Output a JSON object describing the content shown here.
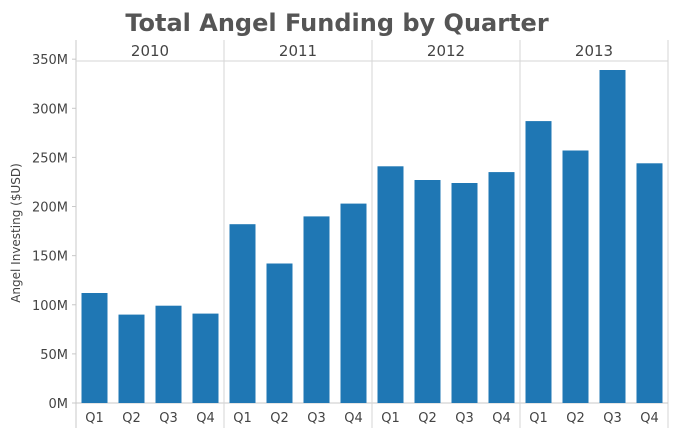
{
  "chart_data": {
    "type": "bar",
    "title": "Total Angel Funding by Quarter",
    "ylabel": "Angel Investing ($USD)",
    "xlabel": "",
    "ylim": [
      0,
      350
    ],
    "yticks": [
      0,
      50,
      100,
      150,
      200,
      250,
      300,
      350
    ],
    "ytick_labels": [
      "0M",
      "50M",
      "100M",
      "150M",
      "200M",
      "250M",
      "300M",
      "350M"
    ],
    "bar_color": "#1f77b4",
    "groups": [
      {
        "year": "2010",
        "categories": [
          "Q1",
          "Q2",
          "Q3",
          "Q4"
        ],
        "values": [
          112,
          90,
          99,
          91
        ]
      },
      {
        "year": "2011",
        "categories": [
          "Q1",
          "Q2",
          "Q3",
          "Q4"
        ],
        "values": [
          182,
          142,
          190,
          203
        ]
      },
      {
        "year": "2012",
        "categories": [
          "Q1",
          "Q2",
          "Q3",
          "Q4"
        ],
        "values": [
          241,
          227,
          224,
          235
        ]
      },
      {
        "year": "2013",
        "categories": [
          "Q1",
          "Q2",
          "Q3",
          "Q4"
        ],
        "values": [
          287,
          257,
          339,
          244
        ]
      }
    ]
  }
}
